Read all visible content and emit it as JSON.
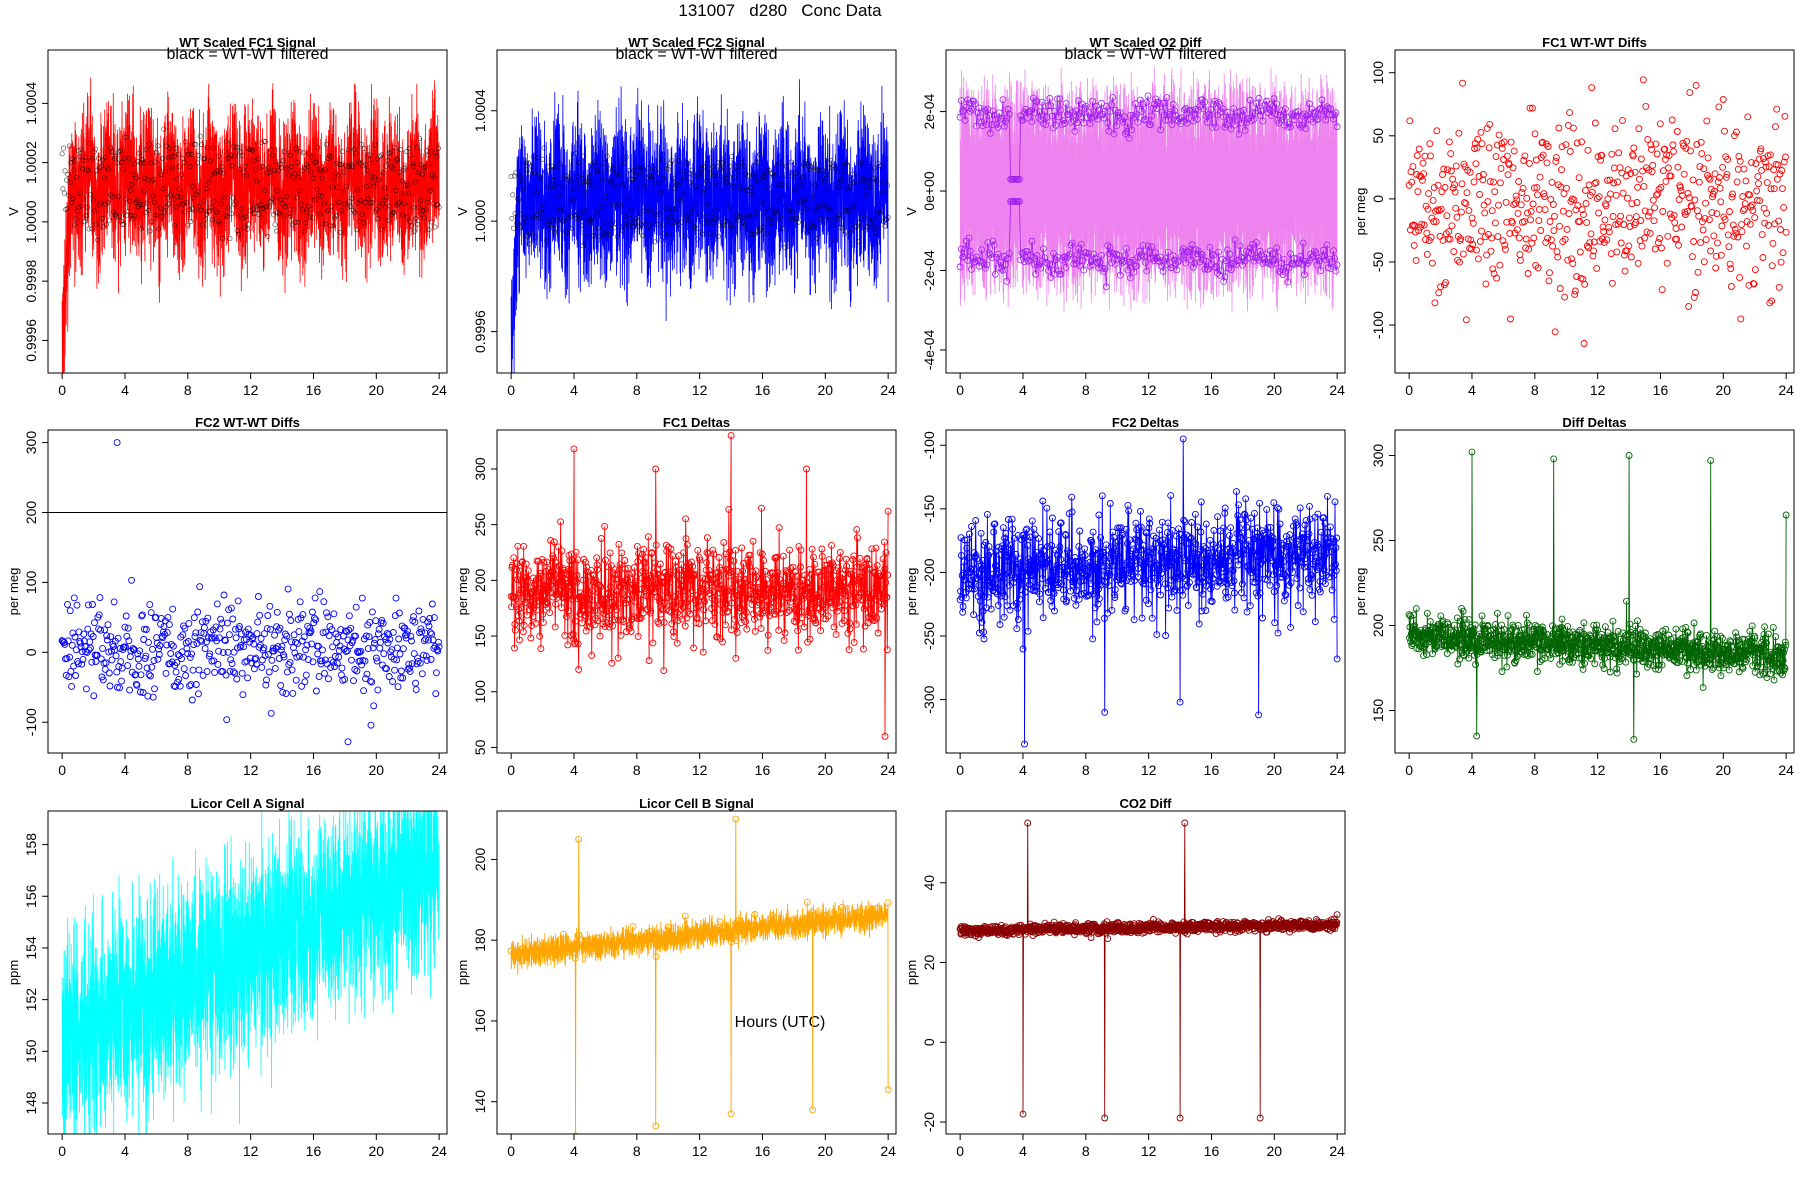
{
  "figure": {
    "title": "131007   d280   Conc Data",
    "xlabel": "Hours (UTC)"
  },
  "chart_data": [
    {
      "id": "fc1-signal",
      "type": "line",
      "title": "WT Scaled FC1 Signal",
      "annotation": "black = WT-WT filtered",
      "ylabel": "V",
      "xlabel": "",
      "color": "#ff0000",
      "overlay_color": "#000000",
      "xlim": [
        -0.9,
        24.5
      ],
      "ylim": [
        0.99949,
        1.00058
      ],
      "xticks": [
        0,
        4,
        8,
        12,
        16,
        20,
        24
      ],
      "yticks": [
        0.9996,
        0.9998,
        1.0,
        1.0002,
        1.0004
      ],
      "ytick_labels": [
        "0.9996",
        "0.9998",
        "1.0000",
        "1.0002",
        "1.0004"
      ],
      "pattern": {
        "kind": "band",
        "center": 1.00012,
        "amplitude": 0.00022,
        "trend": 0,
        "osc_amp": 6e-05,
        "osc_period": 1.3,
        "noise": 0.00014,
        "points": 1400,
        "start_dip": true
      },
      "overlay": {
        "kind": "band",
        "center": 1.00012,
        "amplitude": 0.00012,
        "points": 520
      },
      "grid": false,
      "legend": "none"
    },
    {
      "id": "fc2-signal",
      "type": "line",
      "title": "WT Scaled FC2 Signal",
      "annotation": "black = WT-WT filtered",
      "ylabel": "V",
      "xlabel": "",
      "color": "#0000ff",
      "overlay_color": "#000000",
      "xlim": [
        -0.9,
        24.5
      ],
      "ylim": [
        0.99945,
        1.00062
      ],
      "xticks": [
        0,
        4,
        8,
        12,
        16,
        20,
        24
      ],
      "yticks": [
        0.9996,
        1.0,
        1.0004
      ],
      "ytick_labels": [
        "0.9996",
        "1.0000",
        "1.0004"
      ],
      "pattern": {
        "kind": "band",
        "center": 1.00008,
        "amplitude": 0.00025,
        "trend": 0,
        "osc_amp": 6e-05,
        "osc_period": 1.3,
        "noise": 0.00016,
        "points": 1400,
        "start_dip": true
      },
      "overlay": {
        "kind": "band",
        "center": 1.00008,
        "amplitude": 0.00012,
        "points": 480
      },
      "grid": false,
      "legend": "none"
    },
    {
      "id": "o2-diff",
      "type": "line",
      "title": "WT Scaled O2 Diff",
      "annotation": "black = WT-WT filtered",
      "ylabel": "V",
      "xlabel": "",
      "color": "#ee82ee",
      "overlay_color": "#a020f0",
      "xlim": [
        -0.9,
        24.5
      ],
      "ylim": [
        -0.000458,
        0.000355
      ],
      "xticks": [
        0,
        4,
        8,
        12,
        16,
        20,
        24
      ],
      "yticks": [
        -0.0004,
        -0.0002,
        0,
        0.0002
      ],
      "ytick_labels": [
        "-4e-04",
        "-2e-04",
        "0e+00",
        "2e-04"
      ],
      "pattern": {
        "kind": "band",
        "center": 5e-06,
        "amplitude": 0.00028,
        "trend": 0,
        "noise": 4e-05,
        "points": 1500
      },
      "overlay": {
        "kind": "twin",
        "levels": [
          0.000195,
          -0.000175
        ],
        "wiggle": 2e-05,
        "points": 300,
        "dip_at": 3.5
      },
      "grid": false,
      "legend": "none"
    },
    {
      "id": "fc1-wtwt",
      "type": "scatter",
      "title": "FC1 WT-WT Diffs",
      "ylabel": "per meg",
      "xlabel": "",
      "color": "#ff0000",
      "xlim": [
        -0.9,
        24.5
      ],
      "ylim": [
        -138,
        118
      ],
      "xticks": [
        0,
        4,
        8,
        12,
        16,
        20,
        24
      ],
      "yticks": [
        -100,
        -50,
        0,
        50,
        100
      ],
      "ytick_labels": [
        "-100",
        "-50",
        "0",
        "50",
        "100"
      ],
      "pattern": {
        "kind": "scatter",
        "center": 0,
        "sd": 36,
        "points": 600
      },
      "grid": false,
      "legend": "none"
    },
    {
      "id": "fc2-wtwt",
      "type": "scatter",
      "title": "FC2 WT-WT Diffs",
      "ylabel": "per meg",
      "xlabel": "",
      "color": "#0000ff",
      "xlim": [
        -0.9,
        24.5
      ],
      "ylim": [
        -144,
        318
      ],
      "xticks": [
        0,
        4,
        8,
        12,
        16,
        20,
        24
      ],
      "yticks": [
        -100,
        0,
        100,
        200,
        300
      ],
      "ytick_labels": [
        "-100",
        "0",
        "100",
        "200",
        "300"
      ],
      "hline": 200,
      "pattern": {
        "kind": "scatter",
        "center": 5,
        "sd": 34,
        "points": 560,
        "outliers": [
          [
            3.5,
            300
          ],
          [
            18.2,
            -128
          ]
        ]
      },
      "grid": false,
      "legend": "none"
    },
    {
      "id": "fc1-deltas",
      "type": "line",
      "title": "FC1 Deltas",
      "ylabel": "per meg",
      "xlabel": "",
      "color": "#ff0000",
      "markers": true,
      "xlim": [
        -0.9,
        24.5
      ],
      "ylim": [
        45,
        335
      ],
      "xticks": [
        0,
        4,
        8,
        12,
        16,
        20,
        24
      ],
      "yticks": [
        50,
        100,
        150,
        200,
        250,
        300
      ],
      "ytick_labels": [
        "50",
        "100",
        "150",
        "200",
        "250",
        "300"
      ],
      "pattern": {
        "kind": "noisy",
        "center": 190,
        "noise": 22,
        "points": 900,
        "spikes": [
          [
            4.0,
            318
          ],
          [
            4.3,
            120
          ],
          [
            9.2,
            300
          ],
          [
            14.0,
            330
          ],
          [
            14.3,
            130
          ],
          [
            18.8,
            300
          ],
          [
            23.8,
            60
          ],
          [
            24.0,
            262
          ]
        ]
      },
      "grid": false,
      "legend": "none"
    },
    {
      "id": "fc2-deltas",
      "type": "line",
      "title": "FC2 Deltas",
      "ylabel": "per meg",
      "xlabel": "",
      "color": "#0000ff",
      "markers": true,
      "xlim": [
        -0.9,
        24.5
      ],
      "ylim": [
        -342,
        -88
      ],
      "xticks": [
        0,
        4,
        8,
        12,
        16,
        20,
        24
      ],
      "yticks": [
        -300,
        -250,
        -200,
        -150,
        -100
      ],
      "ytick_labels": [
        "-300",
        "-250",
        "-200",
        "-150",
        "-100"
      ],
      "pattern": {
        "kind": "noisy",
        "center": -200,
        "trend": 15,
        "noise": 20,
        "points": 900,
        "spikes": [
          [
            4.1,
            -335
          ],
          [
            9.2,
            -310
          ],
          [
            14.0,
            -302
          ],
          [
            14.2,
            -95
          ],
          [
            19.0,
            -312
          ],
          [
            24.0,
            -112
          ],
          [
            24.0,
            -268
          ]
        ]
      },
      "grid": false,
      "legend": "none"
    },
    {
      "id": "diff-deltas",
      "type": "line",
      "title": "Diff Deltas",
      "ylabel": "per meg",
      "xlabel": "",
      "color": "#006400",
      "markers": true,
      "xlim": [
        -0.9,
        24.5
      ],
      "ylim": [
        125,
        315
      ],
      "xticks": [
        0,
        4,
        8,
        12,
        16,
        20,
        24
      ],
      "yticks": [
        150,
        200,
        250,
        300
      ],
      "ytick_labels": [
        "150",
        "200",
        "250",
        "300"
      ],
      "pattern": {
        "kind": "noisy",
        "center": 194,
        "trend": -12,
        "noise": 6,
        "points": 1000,
        "spikes": [
          [
            4.0,
            302
          ],
          [
            4.3,
            135
          ],
          [
            9.2,
            298
          ],
          [
            14.0,
            300
          ],
          [
            14.3,
            133
          ],
          [
            19.2,
            297
          ],
          [
            24.0,
            265
          ]
        ]
      },
      "grid": false,
      "legend": "none"
    },
    {
      "id": "licor-a",
      "type": "line",
      "title": "Licor Cell A Signal",
      "ylabel": "ppm",
      "xlabel": "",
      "color": "#00ffff",
      "xlim": [
        -0.9,
        24.5
      ],
      "ylim": [
        146.8,
        159.3
      ],
      "xticks": [
        0,
        4,
        8,
        12,
        16,
        20,
        24
      ],
      "yticks": [
        148,
        150,
        152,
        154,
        156,
        158
      ],
      "ytick_labels": [
        "148",
        "150",
        "152",
        "154",
        "156",
        "158"
      ],
      "pattern": {
        "kind": "band",
        "center": 150.4,
        "amplitude": 3.2,
        "trend": 7.0,
        "noise": 2.6,
        "points": 1500
      },
      "grid": false,
      "legend": "none"
    },
    {
      "id": "licor-b",
      "type": "line",
      "title": "Licor Cell B Signal",
      "ylabel": "ppm",
      "xlabel": "",
      "color": "#ffa500",
      "markers": "sparse",
      "xlim": [
        -0.9,
        24.5
      ],
      "ylim": [
        132,
        212
      ],
      "xticks": [
        0,
        4,
        8,
        12,
        16,
        20,
        24
      ],
      "yticks": [
        140,
        160,
        180,
        200
      ],
      "ytick_labels": [
        "140",
        "160",
        "180",
        "200"
      ],
      "pattern": {
        "kind": "band",
        "center": 176.5,
        "amplitude": 3.0,
        "trend": 10,
        "noise": 2.0,
        "points": 1300,
        "spikes": [
          [
            4.1,
            131
          ],
          [
            4.3,
            205
          ],
          [
            9.2,
            134
          ],
          [
            14.0,
            137
          ],
          [
            14.3,
            210
          ],
          [
            19.2,
            138
          ],
          [
            24.0,
            143
          ]
        ]
      },
      "grid": false,
      "legend": "none"
    },
    {
      "id": "co2-diff",
      "type": "line",
      "title": "CO2 Diff",
      "ylabel": "ppm",
      "xlabel": "",
      "color": "#8b0000",
      "markers": true,
      "xlim": [
        -0.9,
        24.5
      ],
      "ylim": [
        -23,
        58
      ],
      "xticks": [
        0,
        4,
        8,
        12,
        16,
        20,
        24
      ],
      "yticks": [
        -20,
        0,
        20,
        40
      ],
      "ytick_labels": [
        "-20",
        "0",
        "20",
        "40"
      ],
      "pattern": {
        "kind": "noisy",
        "center": 28,
        "trend": 1.5,
        "noise": 0.6,
        "points": 1000,
        "spikes": [
          [
            4.0,
            -18
          ],
          [
            4.3,
            55
          ],
          [
            9.2,
            -19
          ],
          [
            9.4,
            26
          ],
          [
            14.0,
            -19
          ],
          [
            14.3,
            55
          ],
          [
            19.1,
            -19
          ],
          [
            24.0,
            -19
          ],
          [
            24.0,
            32
          ]
        ]
      },
      "grid": false,
      "legend": "none"
    }
  ]
}
